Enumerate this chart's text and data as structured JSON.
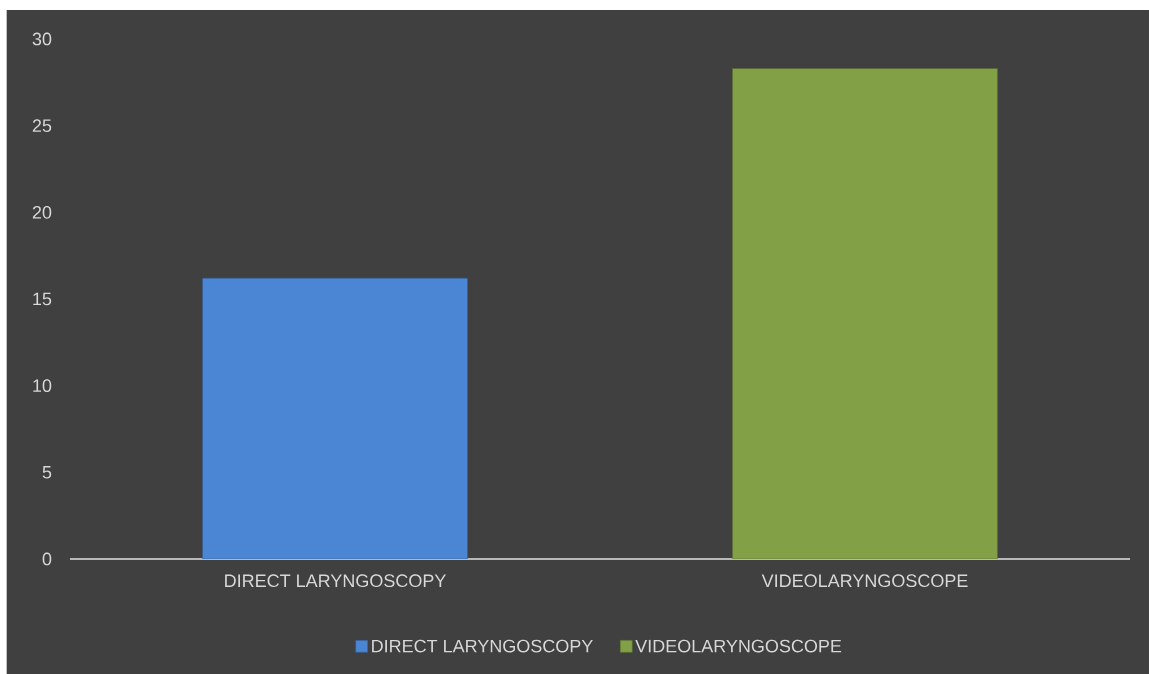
{
  "chart_data": {
    "type": "bar",
    "categories": [
      "DIRECT LARYNGOSCOPY",
      "VIDEOLARYNGOSCOPE"
    ],
    "series": [
      {
        "name": "DIRECT LARYNGOSCOPY",
        "color": "#4a86d4",
        "values": [
          16.2,
          null
        ]
      },
      {
        "name": "VIDEOLARYNGOSCOPE",
        "color": "#82a046",
        "values": [
          null,
          28.3
        ]
      }
    ],
    "ylim": [
      0,
      30
    ],
    "yticks": [
      0,
      5,
      10,
      15,
      20,
      25,
      30
    ],
    "grid": false,
    "legend": "bottom"
  }
}
